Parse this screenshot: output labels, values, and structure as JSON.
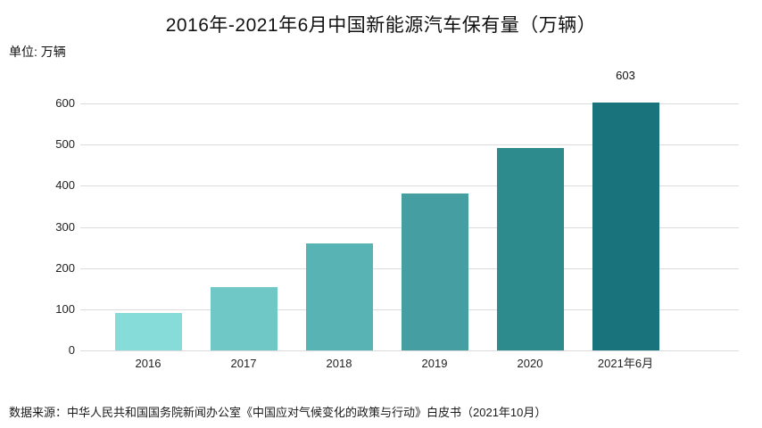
{
  "chart_data": {
    "type": "bar",
    "title": "2016年-2021年6月中国新能源汽车保有量（万辆）",
    "unit_label": "单位: 万辆",
    "categories": [
      "2016",
      "2017",
      "2018",
      "2019",
      "2020",
      "2021年6月"
    ],
    "values": [
      91,
      153,
      261,
      381,
      492,
      603
    ],
    "bar_colors": [
      "#86dcd9",
      "#6fc8c6",
      "#58b3b4",
      "#459fa2",
      "#2d8a8d",
      "#19737c"
    ],
    "data_labels": [
      "",
      "",
      "",
      "",
      "",
      "603"
    ],
    "xlabel": "",
    "ylabel": "",
    "ylim": [
      0,
      600
    ],
    "yticks": [
      0,
      100,
      200,
      300,
      400,
      500,
      600
    ],
    "grid": "horizontal-only",
    "gridline_color": "#dcdcdc",
    "legend": "none"
  },
  "footer": {
    "source": "数据来源：中华人民共和国国务院新闻办公室《中国应对气候变化的政策与行动》白皮书（2021年10月）"
  }
}
